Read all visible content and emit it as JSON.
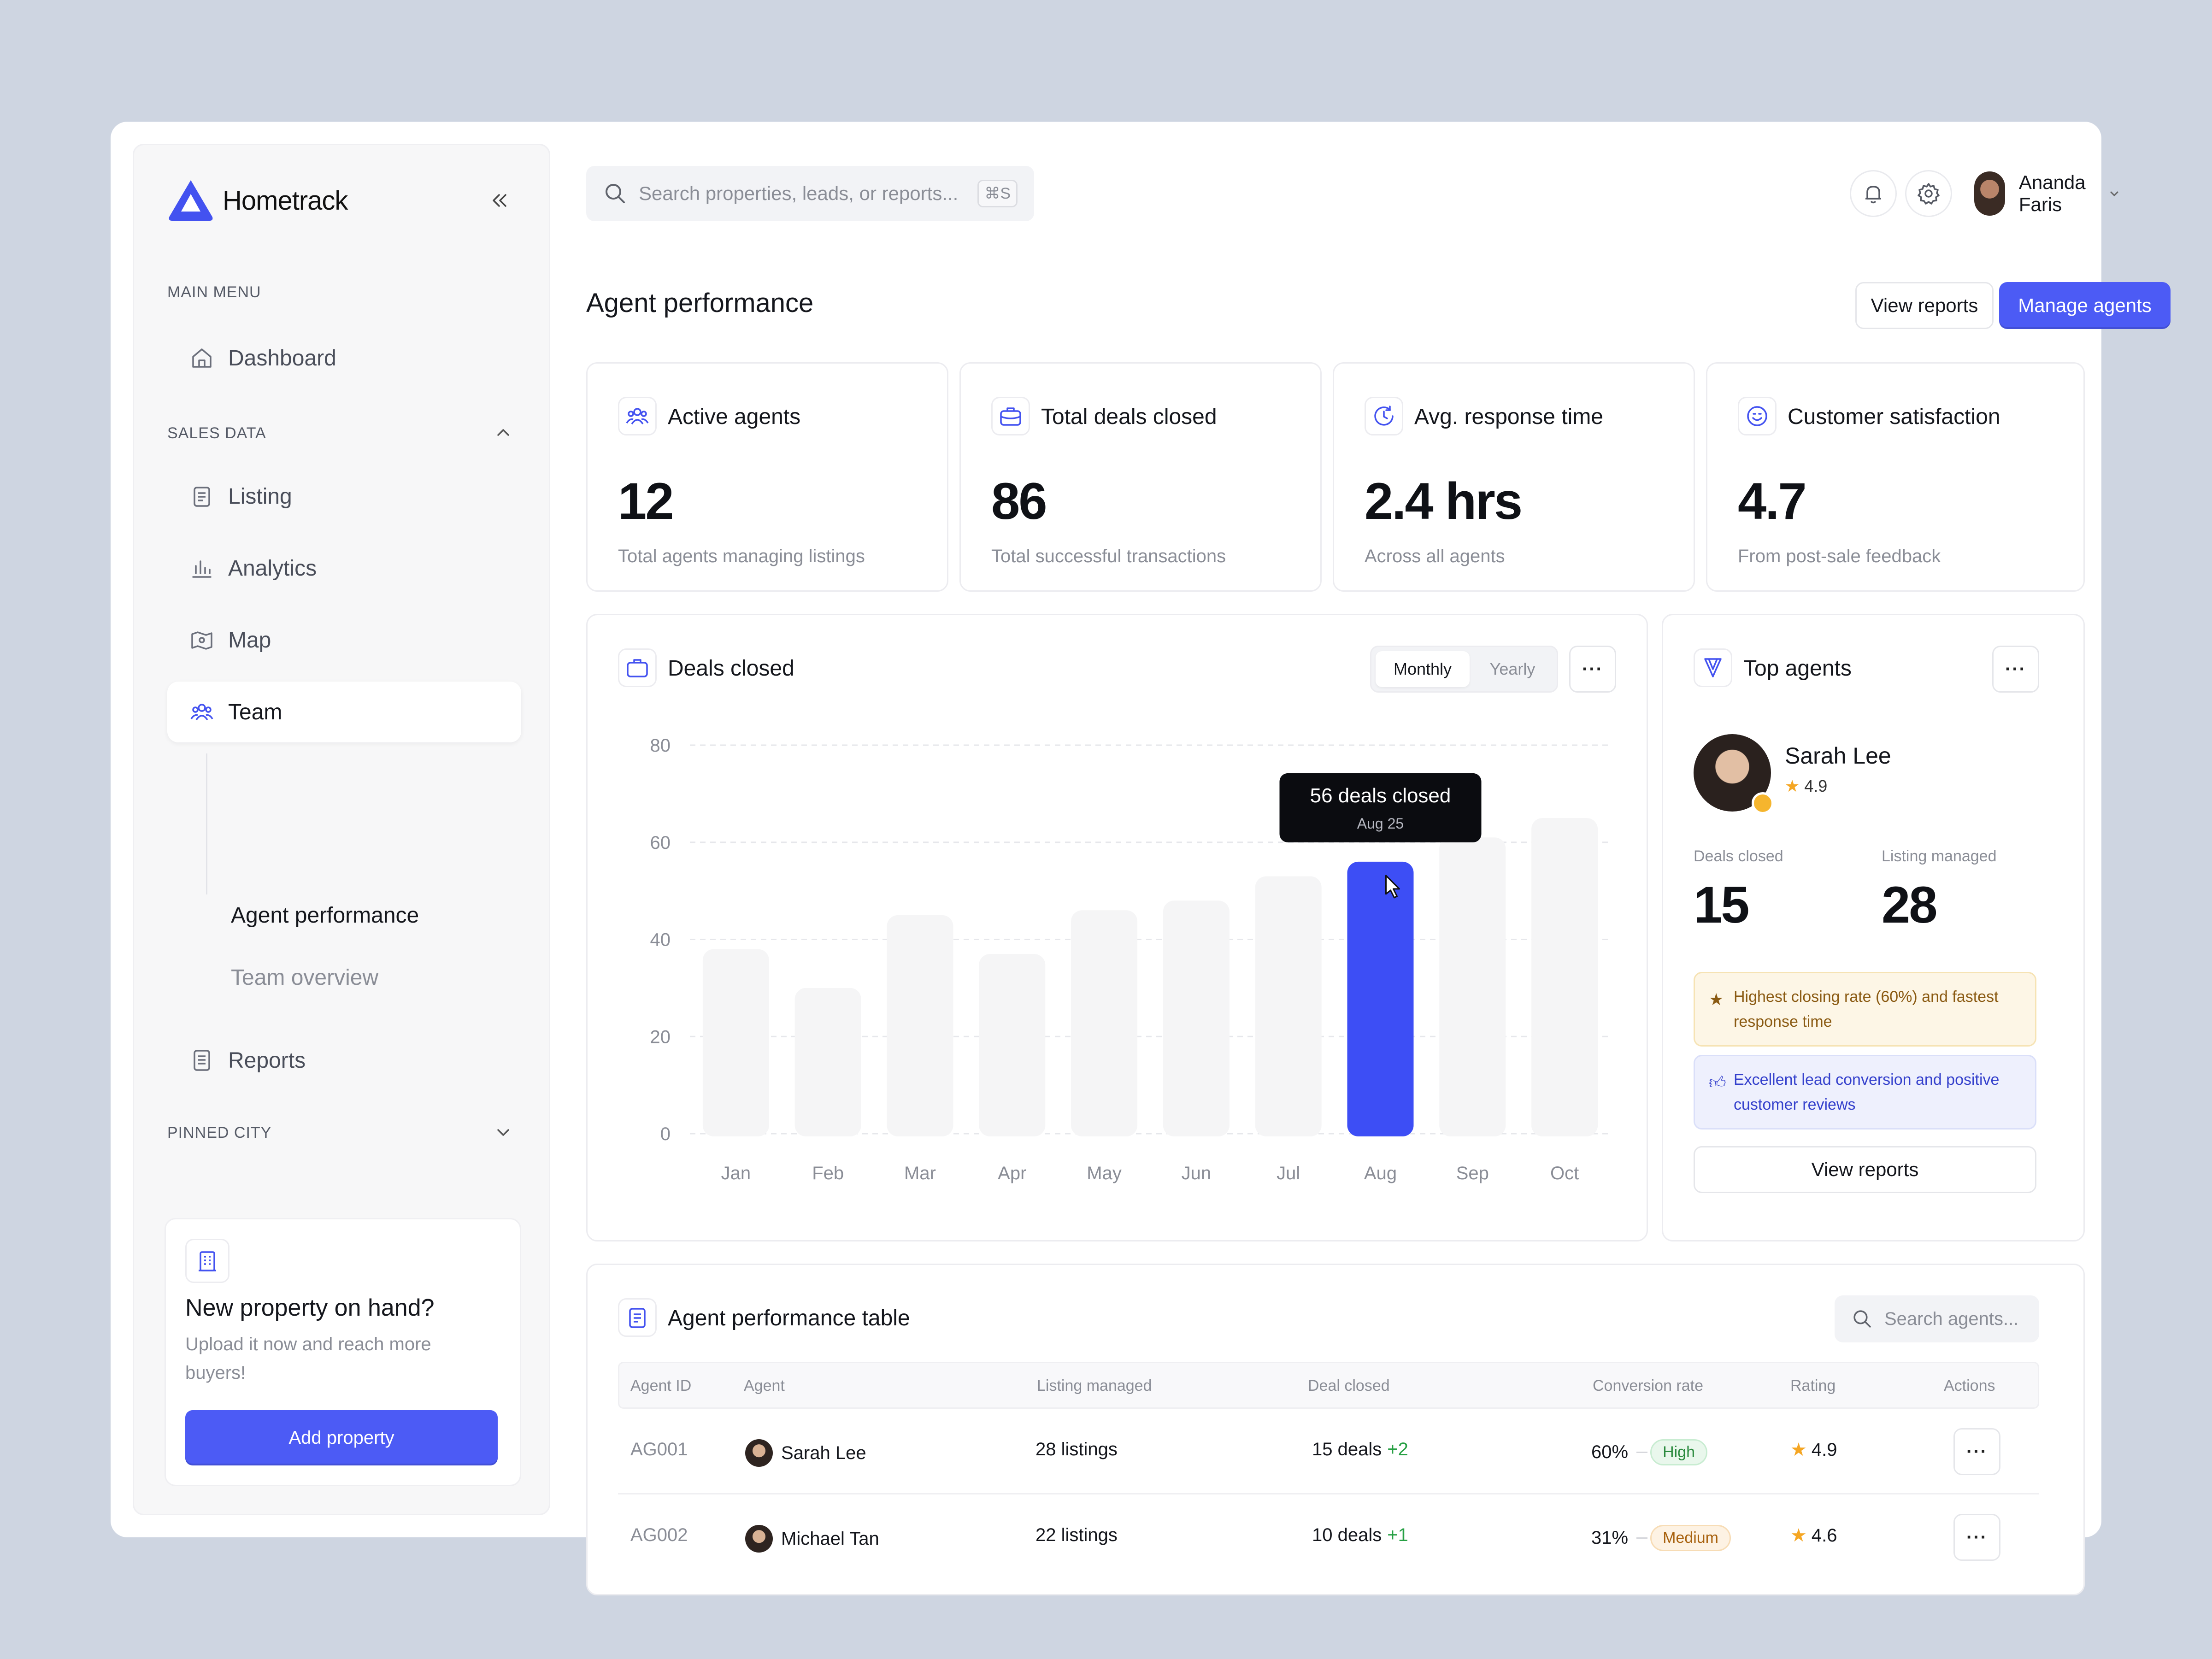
{
  "brand": {
    "name": "Hometrack"
  },
  "sidebar": {
    "main_menu_label": "MAIN MENU",
    "dashboard_label": "Dashboard",
    "sales_data_label": "SALES DATA",
    "items": [
      {
        "label": "Listing",
        "icon": "clipboard-icon"
      },
      {
        "label": "Analytics",
        "icon": "bar-chart-icon"
      },
      {
        "label": "Map",
        "icon": "map-icon"
      },
      {
        "label": "Team",
        "icon": "team-icon"
      }
    ],
    "team_sub": [
      "Agent performance",
      "Team overview"
    ],
    "reports_label": "Reports",
    "pinned_city_label": "PINNED CITY",
    "promo": {
      "title": "New property on hand?",
      "description": "Upload it now and reach more buyers!",
      "button": "Add property"
    }
  },
  "topbar": {
    "search_placeholder": "Search properties, leads, or reports...",
    "shortcut": "⌘S",
    "user_name": "Ananda Faris"
  },
  "page": {
    "title": "Agent performance",
    "view_reports": "View reports",
    "manage_agents": "Manage agents"
  },
  "stats": [
    {
      "label": "Active agents",
      "value": "12",
      "sub": "Total agents managing listings"
    },
    {
      "label": "Total deals closed",
      "value": "86",
      "sub": "Total successful transactions"
    },
    {
      "label": "Avg. response time",
      "value": "2.4 hrs",
      "sub": "Across all agents"
    },
    {
      "label": "Customer satisfaction",
      "value": "4.7",
      "sub": "From post-sale feedback"
    }
  ],
  "deals_card": {
    "title": "Deals closed",
    "toggle": [
      "Monthly",
      "Yearly"
    ],
    "tooltip_title": "56 deals closed",
    "tooltip_sub": "Aug 25"
  },
  "chart_data": {
    "type": "bar",
    "categories": [
      "Jan",
      "Feb",
      "Mar",
      "Apr",
      "May",
      "Jun",
      "Jul",
      "Aug",
      "Sep",
      "Oct"
    ],
    "values": [
      38,
      30,
      45,
      37,
      46,
      48,
      53,
      56,
      61,
      65
    ],
    "highlighted": "Aug",
    "yticks": [
      0,
      20,
      40,
      60,
      80
    ],
    "ylim": [
      0,
      80
    ],
    "grid": true,
    "highlight_color": "#3d4ef5",
    "bar_color": "#f5f5f6"
  },
  "top_agents": {
    "title": "Top agents",
    "name": "Sarah Lee",
    "rating": "4.9",
    "deals_label": "Deals closed",
    "deals_value": "15",
    "listing_label": "Listing managed",
    "listing_value": "28",
    "note_1": "Highest closing rate (60%) and fastest response time",
    "note_2": "Excellent lead conversion and positive customer reviews",
    "button": "View reports"
  },
  "table": {
    "title": "Agent performance table",
    "search_placeholder": "Search agents...",
    "headers": [
      "Agent ID",
      "Agent",
      "Listing managed",
      "Deal closed",
      "Conversion rate",
      "Rating",
      "Actions"
    ],
    "rows": [
      {
        "id": "AG001",
        "agent": "Sarah Lee",
        "listings": "28 listings",
        "deals": "15 deals",
        "delta": "+2",
        "conversion": "60%",
        "level": "High",
        "rating": "4.9"
      },
      {
        "id": "AG002",
        "agent": "Michael Tan",
        "listings": "22 listings",
        "deals": "10 deals",
        "delta": "+1",
        "conversion": "31%",
        "level": "Medium",
        "rating": "4.6"
      }
    ]
  }
}
